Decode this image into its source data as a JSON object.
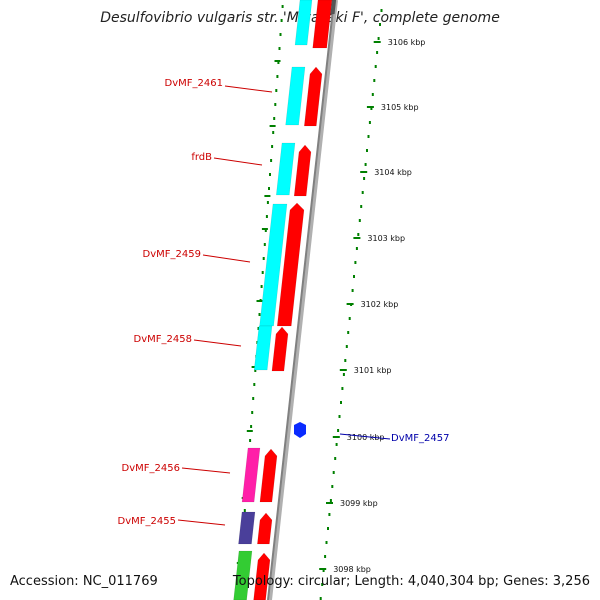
{
  "title": "Desulfovibrio vulgaris str. 'Miyazaki F', complete genome",
  "accession": "Accession: NC_011769",
  "topology": "Topology: circular; Length: 4,040,304 bp; Genes: 3,256",
  "colors": {
    "backbone": "#808080",
    "reverse_strand_label": "#cc0000",
    "forward_strand_label": "#0000aa",
    "ticks": "#008000",
    "cds_red": "#ff0000",
    "cds_cyan": "#00ffff",
    "cds_magenta": "#ff1fa8",
    "cds_purple": "#4a3f9a",
    "cds_green": "#33cc33",
    "cds_blue": "#0a2bff"
  },
  "gene_labels": [
    {
      "id": "DvMF_2461",
      "label": "DvMF_2461",
      "strand": "reverse"
    },
    {
      "id": "frdB",
      "label": "frdB",
      "strand": "reverse"
    },
    {
      "id": "DvMF_2459",
      "label": "DvMF_2459",
      "strand": "reverse"
    },
    {
      "id": "DvMF_2458",
      "label": "DvMF_2458",
      "strand": "reverse"
    },
    {
      "id": "DvMF_2457",
      "label": "DvMF_2457",
      "strand": "forward"
    },
    {
      "id": "DvMF_2456",
      "label": "DvMF_2456",
      "strand": "reverse"
    },
    {
      "id": "DvMF_2455",
      "label": "DvMF_2455",
      "strand": "reverse"
    }
  ],
  "ticks": [
    {
      "kbp": 3106,
      "label": "3106 kbp"
    },
    {
      "kbp": 3105,
      "label": "3105 kbp"
    },
    {
      "kbp": 3104,
      "label": "3104 kbp"
    },
    {
      "kbp": 3103,
      "label": "3103 kbp"
    },
    {
      "kbp": 3102,
      "label": "3102 kbp"
    },
    {
      "kbp": 3101,
      "label": "3101 kbp"
    },
    {
      "kbp": 3100,
      "label": "3100 kbp"
    },
    {
      "kbp": 3099,
      "label": "3099 kbp"
    },
    {
      "kbp": 3098,
      "label": "3098 kbp"
    }
  ]
}
